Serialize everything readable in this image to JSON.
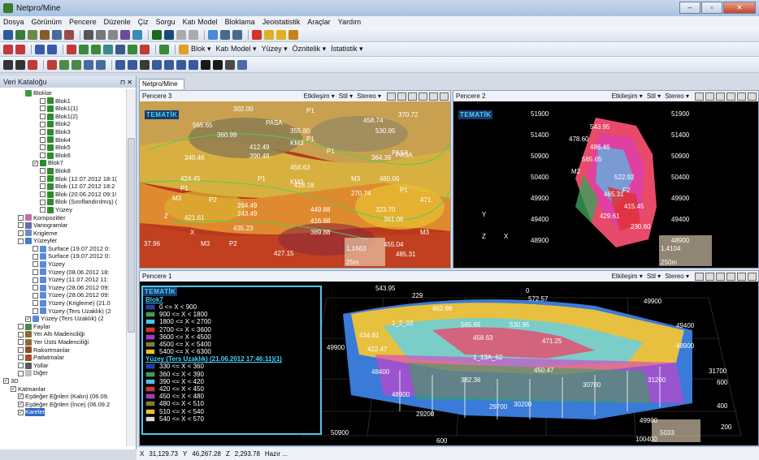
{
  "window": {
    "title": "Netpro/Mine"
  },
  "menu": [
    "Dosya",
    "Görünüm",
    "Pencere",
    "Düzenle",
    "Çiz",
    "Sorgu",
    "Katı Model",
    "Bloklama",
    "Jeoistatistik",
    "Araçlar",
    "Yardım"
  ],
  "toolbar3": {
    "blok": "Blok ▾",
    "kati_model": "Katı Model ▾",
    "yuzey": "Yüzey ▾",
    "oznitelik": "Öznitelik ▾",
    "istatistik": "İstatistik ▾"
  },
  "sidebar": {
    "title": "Veri Kataloğu",
    "tree": [
      {
        "label": "Bloklar",
        "indent": 3,
        "color": "#3a9a3a"
      },
      {
        "label": "Blok1",
        "indent": 5,
        "color": "#2e8a2e",
        "cb": true
      },
      {
        "label": "Blok1(1)",
        "indent": 5,
        "color": "#2e8a2e",
        "cb": true
      },
      {
        "label": "Blok1(2)",
        "indent": 5,
        "color": "#2e8a2e",
        "cb": true
      },
      {
        "label": "Blok2",
        "indent": 5,
        "color": "#2e8a2e",
        "cb": true
      },
      {
        "label": "Blok3",
        "indent": 5,
        "color": "#2e8a2e",
        "cb": true
      },
      {
        "label": "Blok4",
        "indent": 5,
        "color": "#2e8a2e",
        "cb": true
      },
      {
        "label": "Blok5",
        "indent": 5,
        "color": "#2e8a2e",
        "cb": true
      },
      {
        "label": "Blok6",
        "indent": 5,
        "color": "#2e8a2e",
        "cb": true
      },
      {
        "label": "Blok7",
        "indent": 4,
        "color": "#2e8a2e",
        "cb": true,
        "checked": true
      },
      {
        "label": "Blok8",
        "indent": 5,
        "color": "#2e8a2e",
        "cb": true
      },
      {
        "label": "Blok (12.07.2012 18:1(",
        "indent": 5,
        "color": "#2e8a2e",
        "cb": true
      },
      {
        "label": "Blok (12.07.2012 18:2",
        "indent": 5,
        "color": "#2e8a2e",
        "cb": true
      },
      {
        "label": "Blok (20.06.2012 09:1!",
        "indent": 5,
        "color": "#2e8a2e",
        "cb": true
      },
      {
        "label": "Blok (Sınıflandırılmış) (",
        "indent": 5,
        "color": "#2e8a2e",
        "cb": true
      },
      {
        "label": "Yüzey",
        "indent": 5,
        "color": "#2e8a2e",
        "cb": true
      },
      {
        "label": "Kompozitler",
        "indent": 2,
        "color": "#c66aa8",
        "cb": true
      },
      {
        "label": "Variogramlar",
        "indent": 2,
        "color": "#6a6aa8",
        "cb": true
      },
      {
        "label": "Krigleme",
        "indent": 2,
        "color": "#6a8ac8",
        "cb": true
      },
      {
        "label": "Yüzeyler",
        "indent": 2,
        "color": "#4a7ac8",
        "cb": true
      },
      {
        "label": "Surface (19.07.2012 0:",
        "indent": 4,
        "color": "#5a8ad8",
        "cb": true
      },
      {
        "label": "Surface (19.07.2012 0:",
        "indent": 4,
        "color": "#5a8ad8",
        "cb": true
      },
      {
        "label": "Yüzey",
        "indent": 4,
        "color": "#5a8ad8",
        "cb": true
      },
      {
        "label": "Yüzey (08.06.2012 18:",
        "indent": 4,
        "color": "#5a8ad8",
        "cb": true
      },
      {
        "label": "Yüzey (11.07.2012 11:",
        "indent": 4,
        "color": "#5a8ad8",
        "cb": true
      },
      {
        "label": "Yüzey (28.06.2012 09:",
        "indent": 4,
        "color": "#5a8ad8",
        "cb": true
      },
      {
        "label": "Yüzey (28.06.2012 09:",
        "indent": 4,
        "color": "#5a8ad8",
        "cb": true
      },
      {
        "label": "Yüzey (Krigleme) (21.0",
        "indent": 4,
        "color": "#5a8ad8",
        "cb": true
      },
      {
        "label": "Yüzey (Ters Uzaklık) (2",
        "indent": 4,
        "color": "#5a8ad8",
        "cb": true
      },
      {
        "label": "Yüzey (Ters Uzaklık) (2",
        "indent": 3,
        "color": "#5a8ad8",
        "cb": true,
        "checked": true
      },
      {
        "label": "Faylar",
        "indent": 2,
        "color": "#4a8a4a",
        "cb": true
      },
      {
        "label": "Yer Altı Madenciliği",
        "indent": 2,
        "color": "#8a6a3a",
        "cb": true
      },
      {
        "label": "Yer Üstü Madenciliği",
        "indent": 2,
        "color": "#8a6a3a",
        "cb": true
      },
      {
        "label": "Rakortmanlar",
        "indent": 2,
        "color": "#8a4a2a",
        "cb": true
      },
      {
        "label": "Patlatmalar",
        "indent": 2,
        "color": "#a84a2a",
        "cb": true
      },
      {
        "label": "Yollar",
        "indent": 2,
        "color": "#5a5a5a",
        "cb": true
      },
      {
        "label": "Diğer",
        "indent": 2,
        "color": "#c0c0c0",
        "cb": true
      },
      {
        "label": "3D",
        "indent": 0,
        "color": "",
        "cb": true,
        "checked": true
      },
      {
        "label": "Katmanlar",
        "indent": 1,
        "color": "",
        "cb": true,
        "checked": true
      },
      {
        "label": "Eşdeğer Eğrileri (Kalın) (06.09.",
        "indent": 2,
        "color": "",
        "cb": true,
        "checked": true
      },
      {
        "label": "Eşdeğer Eğrileri (İnce) (06.09.2",
        "indent": 2,
        "color": "",
        "cb": true,
        "checked": true
      },
      {
        "label": "Kareler",
        "indent": 2,
        "color": "",
        "cb": true,
        "checked": true,
        "sel": true
      }
    ]
  },
  "doc_tab": "Netpro/Mine",
  "panel_controls": {
    "etkilesim": "Etkileşim ▾",
    "stil": "Stil ▾",
    "stereo": "Stereo ▾"
  },
  "pencere3": {
    "title": "Pencere 3",
    "tematik": "TEMATİK",
    "labels": [
      "302.00",
      "P1",
      "370.72",
      "565.65",
      "PASA",
      "458.74",
      "360.99",
      "355.80",
      "530.95",
      "P1",
      "412.49",
      "KM3",
      "P1",
      "PASA",
      "390.48",
      "364.39",
      "PASA",
      "340.46",
      "458.63",
      "KM3",
      "424.45",
      "P1",
      "418.18",
      "M3",
      "460.06",
      "P1",
      "M3",
      "270.74",
      "P1",
      "P2",
      "264.49",
      "471.",
      "243.49",
      "449.88",
      "323.70",
      "421.61",
      "361.06",
      "416.88",
      "435.23",
      "389.88",
      "37.96",
      "M3",
      "P2",
      "M3",
      "427.15",
      "455.04",
      "485.31"
    ],
    "scale": "1,1663",
    "scale_unit": "25m"
  },
  "pencere2": {
    "title": "Pencere 2",
    "tematik": "TEMATİK",
    "yticks_left": [
      "51900",
      "51400",
      "50900",
      "50400",
      "49900",
      "49400",
      "48900"
    ],
    "yticks_right": [
      "51900",
      "51400",
      "50900",
      "50400",
      "49900",
      "49400",
      "48900"
    ],
    "labels": [
      "543.95",
      "478.60",
      "486.46",
      "565.65",
      "M2",
      "522.92",
      "F2",
      "465.31",
      "415.45",
      "429.61",
      "230.60"
    ],
    "scale": "1,4104",
    "scale_unit": "250m"
  },
  "pencere1": {
    "title": "Pencere 1",
    "labels": [
      "543.95",
      "229",
      "0",
      "572.57",
      "50900",
      "462.98",
      "49900",
      "1_2_02",
      "565.65",
      "530.95",
      "50400",
      "434.81",
      "458.63",
      "471.25",
      "49400",
      "49900",
      "422.47",
      "1_13A_62",
      "48900",
      "48400",
      "382.36",
      "450.47",
      "31700",
      "29200",
      "51900",
      "48900",
      "30700",
      "31200",
      "600",
      "30200",
      "29700",
      "29200",
      "51400",
      "50900",
      "400",
      "49900",
      "5033",
      "200",
      "600",
      "100400"
    ],
    "scale": "5033"
  },
  "legend": {
    "title1": "Blok7",
    "ranges1": [
      {
        "label": "0 <= X < 900",
        "color": "#1f3fb0"
      },
      {
        "label": "900 <= X < 1800",
        "color": "#3aa15a"
      },
      {
        "label": "1800 <= X < 2700",
        "color": "#4fc0e8"
      },
      {
        "label": "2700 <= X < 3600",
        "color": "#e03030"
      },
      {
        "label": "3600 <= X < 4500",
        "color": "#a43ac8"
      },
      {
        "label": "4500 <= X < 5400",
        "color": "#8a7a2a"
      },
      {
        "label": "5400 <= X < 6300",
        "color": "#f0c020"
      }
    ],
    "title2": "Yüzey (Ters Uzaklık) (21.06.2012 17:46:11)(1)",
    "ranges2": [
      {
        "label": "330 <= X < 360",
        "color": "#1f3fb0"
      },
      {
        "label": "360 <= X < 390",
        "color": "#3aa15a"
      },
      {
        "label": "390 <= X < 420",
        "color": "#4fc0e8"
      },
      {
        "label": "420 <= X < 450",
        "color": "#e03030"
      },
      {
        "label": "450 <= X < 480",
        "color": "#a43ac8"
      },
      {
        "label": "480 <= X < 510",
        "color": "#8a7a2a"
      },
      {
        "label": "510 <= X < 540",
        "color": "#f0c020"
      },
      {
        "label": "540 <= X < 570",
        "color": "#d8d8d8"
      }
    ]
  },
  "status": {
    "x_label": "X",
    "x_val": "31,129.73",
    "y_label": "Y",
    "y_val": "46,267.28",
    "z_label": "Z",
    "z_val": "2,293.78",
    "msg": "Hazır ..."
  }
}
